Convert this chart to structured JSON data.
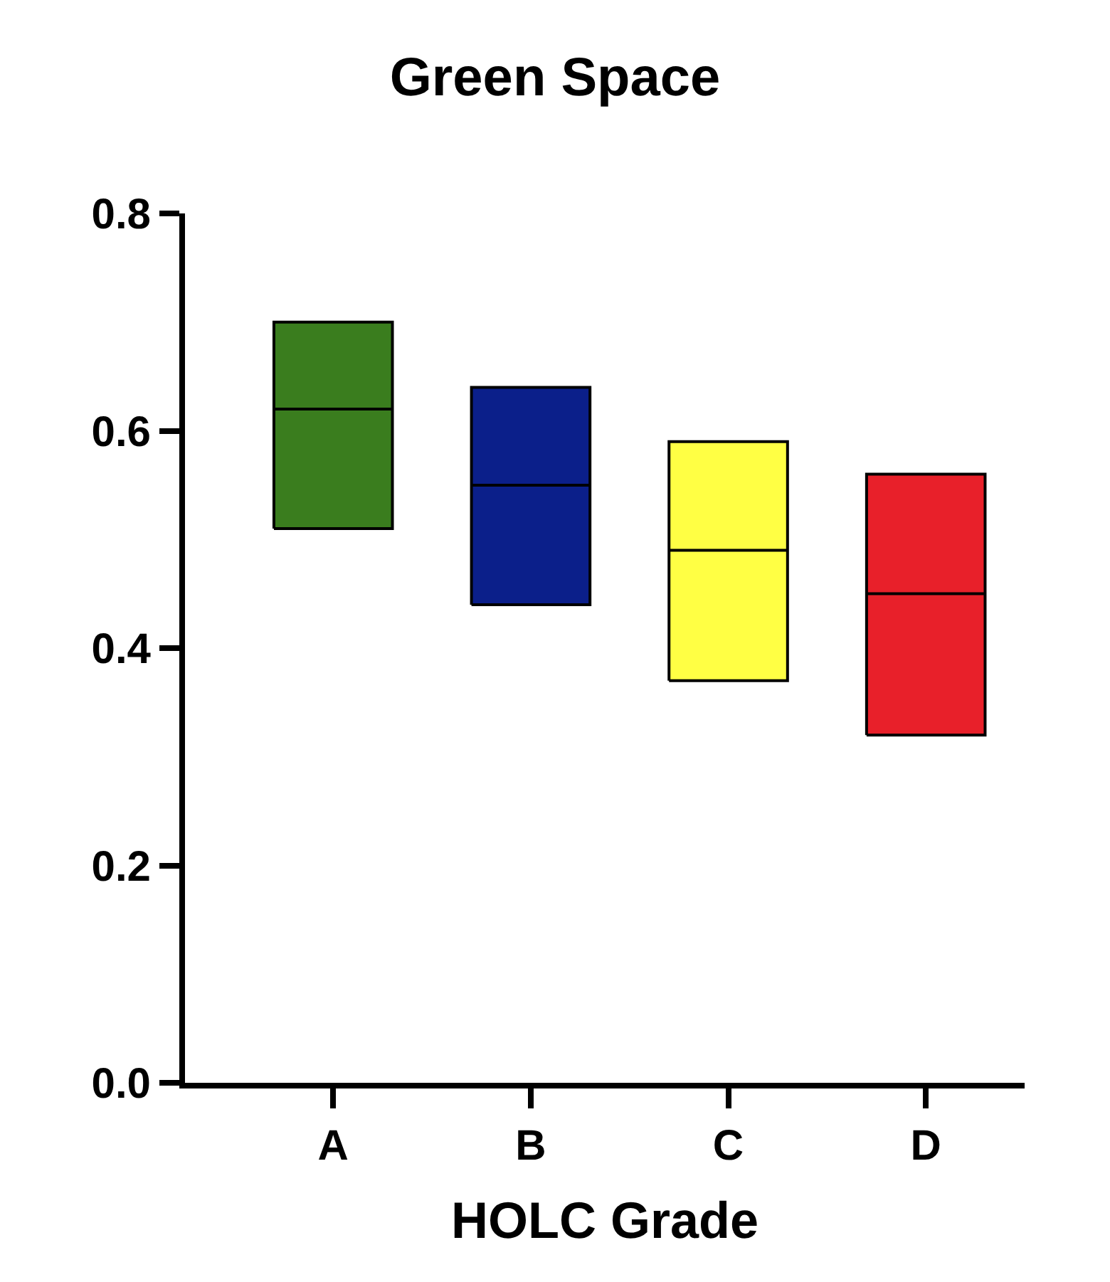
{
  "chart_data": {
    "type": "box",
    "title": "Green Space",
    "xlabel": "HOLC Grade",
    "categories": [
      "A",
      "B",
      "C",
      "D"
    ],
    "boxes": [
      {
        "q1": 0.51,
        "median": 0.62,
        "q3": 0.7
      },
      {
        "q1": 0.44,
        "median": 0.55,
        "q3": 0.64
      },
      {
        "q1": 0.37,
        "median": 0.49,
        "q3": 0.59
      },
      {
        "q1": 0.32,
        "median": 0.45,
        "q3": 0.56
      }
    ],
    "colors": [
      "#3a7d1e",
      "#0b1f8a",
      "#ffff44",
      "#e8202a"
    ],
    "ylim": [
      0,
      0.8
    ],
    "yticks": [
      {
        "value": 0,
        "label": "0.0"
      },
      {
        "value": 0.2,
        "label": "0.2"
      },
      {
        "value": 0.4,
        "label": "0.4"
      },
      {
        "value": 0.6,
        "label": "0.6"
      },
      {
        "value": 0.8,
        "label": "0.8"
      }
    ]
  }
}
